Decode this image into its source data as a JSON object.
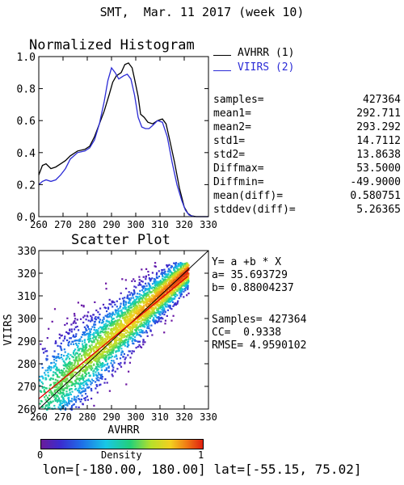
{
  "title": "SMT,  Mar. 11 2017 (week 10)",
  "histogram": {
    "title": "Normalized Histogram",
    "legend": [
      {
        "label": "AVHRR (1)",
        "color": "#000000"
      },
      {
        "label": "VIIRS (2)",
        "color": "#2b2bd6"
      }
    ]
  },
  "stats": [
    {
      "key": "samples=",
      "value": "427364"
    },
    {
      "key": "mean1=",
      "value": "292.711"
    },
    {
      "key": "mean2=",
      "value": "293.292"
    },
    {
      "key": "std1=",
      "value": "14.7112"
    },
    {
      "key": "std2=",
      "value": "13.8638"
    },
    {
      "key": "Diffmax=",
      "value": "53.5000"
    },
    {
      "key": "Diffmin=",
      "value": "-49.9000"
    },
    {
      "key": "mean(diff)=",
      "value": "0.580751"
    },
    {
      "key": "stddev(diff)=",
      "value": "5.26365"
    }
  ],
  "scatter": {
    "title": "Scatter Plot",
    "fit": {
      "equation": "Y= a +b * X",
      "a": "a= 35.693729",
      "b": "b= 0.88004237",
      "samples": "Samples= 427364",
      "cc": "CC=  0.9338",
      "rmse": "RMSE= 4.9590102"
    }
  },
  "colorbar": {
    "min_label": "0",
    "title": "Density",
    "max_label": "1"
  },
  "footer": "lon=[-180.00, 180.00] lat=[-55.15, 75.02]",
  "colors": {
    "red_line": "#e00000",
    "axis": "#000000",
    "viirs": "#2b2bd6"
  },
  "chart_data": [
    {
      "type": "line",
      "title": "Normalized Histogram",
      "xlim": [
        260,
        330
      ],
      "ylim": [
        0.0,
        1.0
      ],
      "xticks": [
        260,
        270,
        280,
        290,
        300,
        310,
        320,
        330
      ],
      "yticks": [
        0.0,
        0.2,
        0.4,
        0.6,
        0.8,
        1.0
      ],
      "xticklabels": [
        "260",
        "270",
        "280",
        "290",
        "300",
        "310",
        "320",
        "330"
      ],
      "yticklabels": [
        "0.0",
        "0.2",
        "0.4",
        "0.6",
        "0.8",
        "1.0"
      ],
      "series": [
        {
          "name": "AVHRR (1)",
          "color": "#000000",
          "x": [
            260,
            261.5,
            263,
            265,
            267,
            269,
            271,
            273,
            276,
            279,
            281,
            283,
            285,
            287,
            289,
            290.5,
            292,
            294,
            295.5,
            297,
            298.5,
            299.5,
            301,
            302,
            303.5,
            305,
            307,
            309,
            311,
            312.5,
            314,
            316,
            318,
            320,
            321.5,
            323,
            325,
            327,
            330
          ],
          "y": [
            0.26,
            0.32,
            0.33,
            0.3,
            0.31,
            0.33,
            0.35,
            0.38,
            0.41,
            0.42,
            0.44,
            0.5,
            0.58,
            0.66,
            0.76,
            0.84,
            0.88,
            0.9,
            0.95,
            0.96,
            0.93,
            0.86,
            0.75,
            0.64,
            0.62,
            0.59,
            0.58,
            0.6,
            0.61,
            0.58,
            0.48,
            0.34,
            0.18,
            0.06,
            0.02,
            0.005,
            0.0,
            0.0,
            0.0
          ]
        },
        {
          "name": "VIIRS (2)",
          "color": "#2b2bd6",
          "x": [
            260,
            261.5,
            263,
            265,
            267,
            269,
            271,
            273,
            276,
            279,
            281,
            283,
            285,
            287,
            288.5,
            290,
            291.5,
            293,
            295,
            296.5,
            298,
            299.5,
            301,
            302.5,
            304,
            305.5,
            307,
            309,
            311,
            313,
            315,
            317,
            319,
            320.5,
            322,
            324,
            326,
            330
          ],
          "y": [
            0.2,
            0.22,
            0.23,
            0.22,
            0.23,
            0.26,
            0.3,
            0.36,
            0.4,
            0.41,
            0.43,
            0.48,
            0.58,
            0.72,
            0.85,
            0.93,
            0.9,
            0.86,
            0.88,
            0.89,
            0.86,
            0.76,
            0.62,
            0.56,
            0.55,
            0.55,
            0.57,
            0.6,
            0.59,
            0.5,
            0.34,
            0.2,
            0.1,
            0.04,
            0.01,
            0.0,
            0.0,
            0.0
          ]
        }
      ]
    },
    {
      "type": "scatter",
      "title": "Scatter Plot",
      "xlabel": "AVHRR",
      "ylabel": "VIIRS",
      "xlim": [
        260,
        330
      ],
      "ylim": [
        260,
        330
      ],
      "xticks": [
        260,
        270,
        280,
        290,
        300,
        310,
        320,
        330
      ],
      "yticks": [
        260,
        270,
        280,
        290,
        300,
        310,
        320,
        330
      ],
      "xticklabels": [
        "260",
        "270",
        "280",
        "290",
        "300",
        "310",
        "320",
        "330"
      ],
      "yticklabels": [
        "260",
        "270",
        "280",
        "290",
        "300",
        "310",
        "320",
        "330"
      ],
      "fit_line": {
        "intercept": 35.693729,
        "slope": 0.88004237,
        "x_range": [
          260,
          321.5
        ]
      },
      "identity_line": {
        "x_range": [
          260,
          330
        ]
      },
      "data_extent": {
        "x": [
          260,
          321.5
        ],
        "y": [
          260,
          325
        ]
      },
      "samples": 427364,
      "colorbar": {
        "label": "Density",
        "min": 0,
        "max": 1,
        "colormap": "rainbow"
      }
    }
  ]
}
